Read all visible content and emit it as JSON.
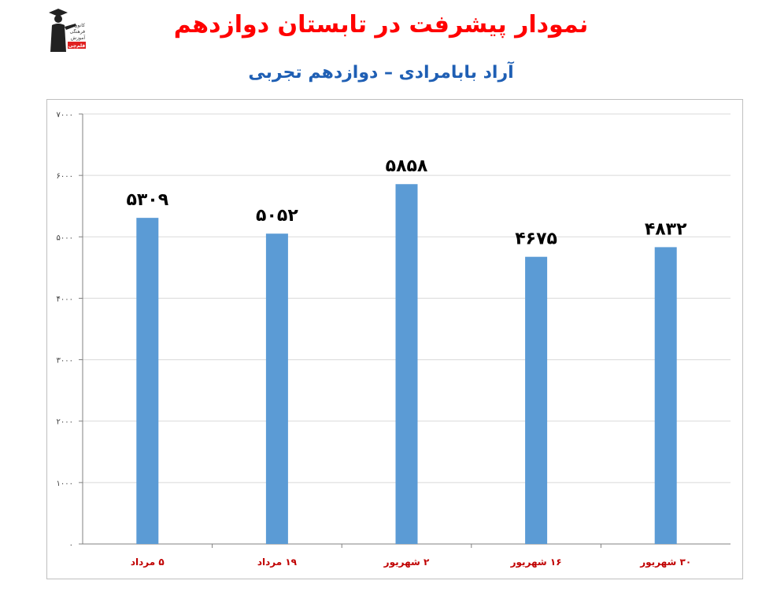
{
  "header": {
    "title": "نمودار پیشرفت در تابستان دوازدهم",
    "subtitle": "آراد بابامرادی – دوازدهم تجربی"
  },
  "logo": {
    "line1": "کانون",
    "line2": "فرهنگی",
    "line3": "آموزش",
    "badge": "قلم‌چی"
  },
  "chart_data": {
    "type": "bar",
    "categories": [
      "۵ مرداد",
      "۱۹ مرداد",
      "۲ شهریور",
      "۱۶ شهریور",
      "۳۰ شهریور"
    ],
    "values": [
      5309,
      5052,
      5858,
      4675,
      4832
    ],
    "data_labels": [
      "۵۳۰۹",
      "۵۰۵۲",
      "۵۸۵۸",
      "۴۶۷۵",
      "۴۸۳۲"
    ],
    "ylim": [
      0,
      7000
    ],
    "yticks": [
      0,
      1000,
      2000,
      3000,
      4000,
      5000,
      6000,
      7000
    ],
    "ytick_labels": [
      "۰",
      "۱۰۰۰",
      "۲۰۰۰",
      "۳۰۰۰",
      "۴۰۰۰",
      "۵۰۰۰",
      "۶۰۰۰",
      "۷۰۰۰"
    ],
    "grid": true,
    "colors": {
      "bar": "#5b9bd5",
      "grid": "#d9d9d9",
      "category_label": "#c00000"
    }
  }
}
